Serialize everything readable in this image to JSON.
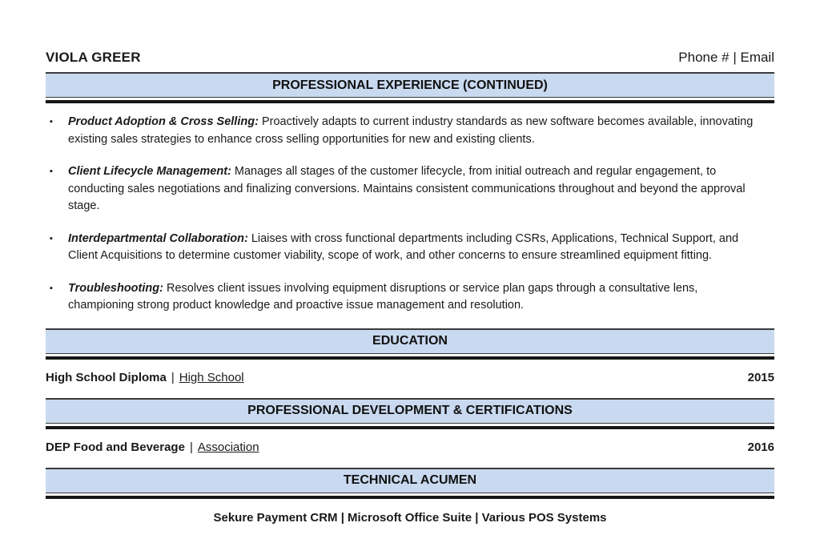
{
  "header": {
    "name": "VIOLA GREER",
    "contact": "Phone # | Email"
  },
  "icons": {
    "bullet_marker": "▪"
  },
  "colors": {
    "banner_bg": "#c9d9f0",
    "banner_border": "#3b3b3b",
    "rule": "#161616",
    "text": "#1a1a1a"
  },
  "sections": {
    "experience": {
      "title": "PROFESSIONAL EXPERIENCE (CONTINUED)",
      "bullets": [
        {
          "lead": "Product Adoption & Cross Selling:",
          "text": "Proactively adapts to current industry standards as new software becomes available, innovating existing sales strategies to enhance cross selling opportunities for new and existing clients."
        },
        {
          "lead": "Client Lifecycle Management:",
          "text": "Manages all stages of the customer lifecycle, from initial outreach and regular engagement, to conducting sales negotiations and finalizing conversions. Maintains consistent communications throughout and beyond the approval stage."
        },
        {
          "lead": "Interdepartmental Collaboration:",
          "text": "Liaises with cross functional departments including CSRs, Applications, Technical Support, and Client Acquisitions to determine customer viability, scope of work, and other concerns to ensure streamlined equipment fitting."
        },
        {
          "lead": "Troubleshooting:",
          "text": "Resolves client issues involving equipment disruptions or service plan gaps through a consultative lens, championing strong product knowledge and proactive issue management and resolution."
        }
      ]
    },
    "education": {
      "title": "EDUCATION",
      "entry": {
        "degree": "High School Diploma",
        "separator": "|",
        "institution": "High School",
        "year": "2015"
      }
    },
    "certifications": {
      "title": "PROFESSIONAL DEVELOPMENT & CERTIFICATIONS",
      "entry": {
        "name": "DEP Food and Beverage",
        "separator": "|",
        "organization": "Association",
        "year": "2016"
      }
    },
    "technical": {
      "title": "TECHNICAL ACUMEN",
      "skills": "Sekure Payment CRM | Microsoft Office Suite | Various POS Systems"
    }
  }
}
